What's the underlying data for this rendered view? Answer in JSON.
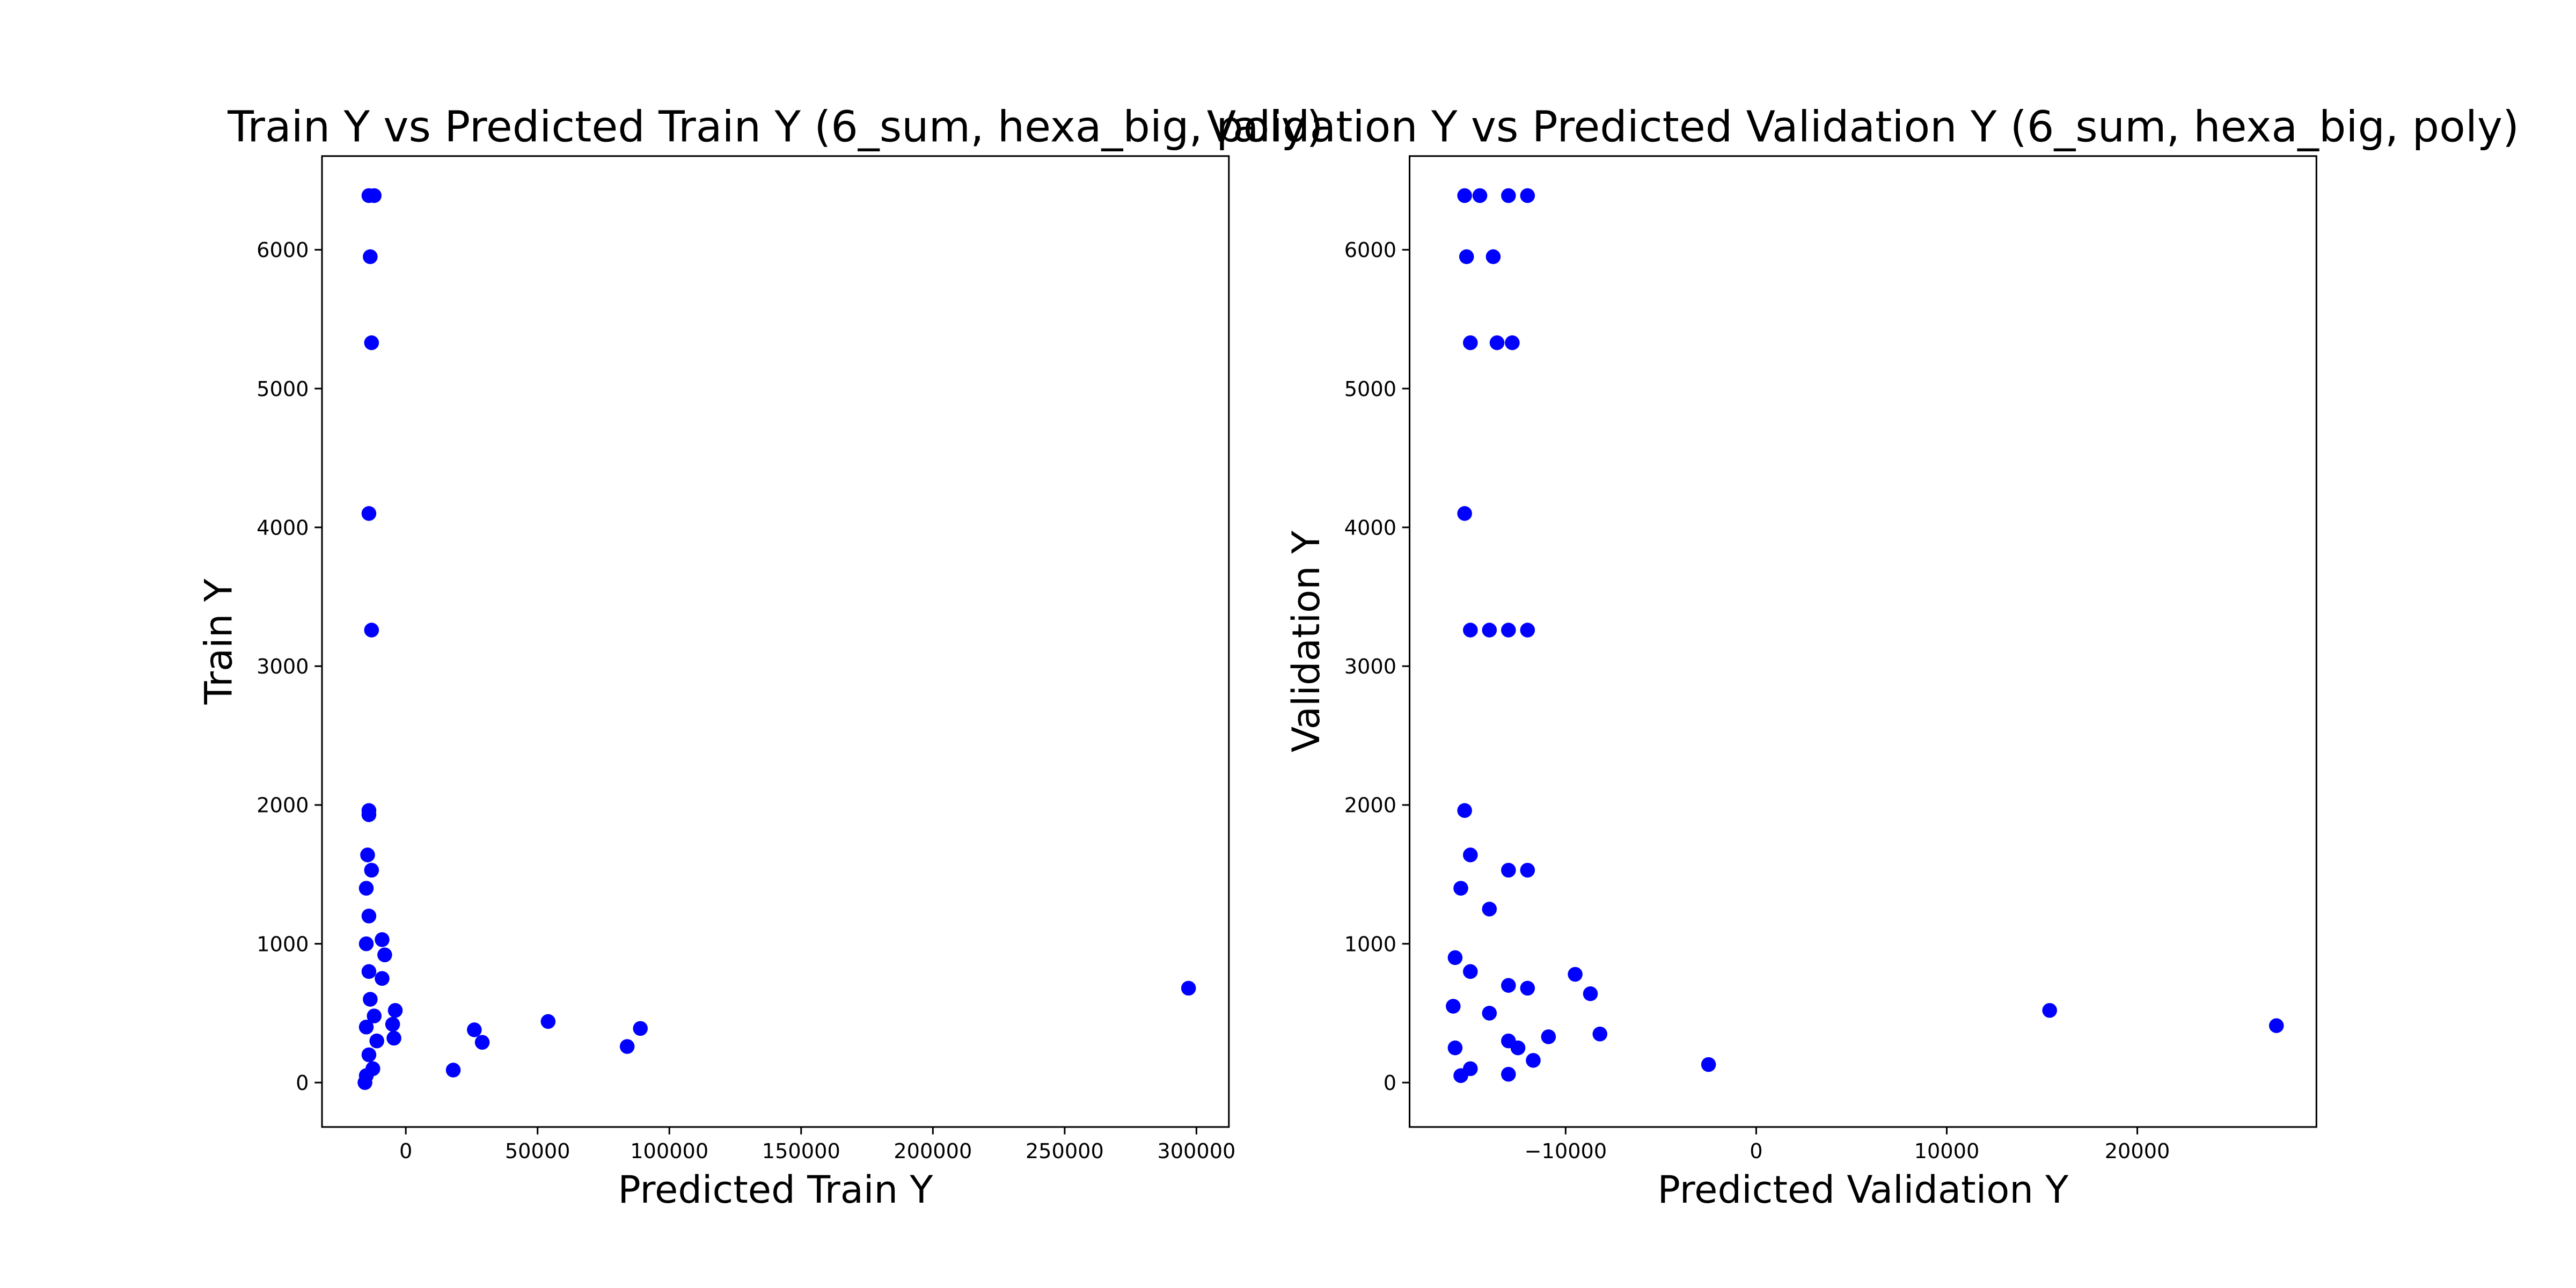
{
  "chart_data": [
    {
      "type": "scatter",
      "title": "Train Y vs Predicted Train Y (6_sum, hexa_big, poly)",
      "x_label": "Predicted Train Y",
      "y_label": "Train Y",
      "color": "#0000ff",
      "x": [
        -14000,
        -12000,
        -13500,
        -13000,
        -14000,
        -13000,
        -14000,
        -14000,
        -14500,
        -13000,
        -15000,
        -14000,
        -15000,
        -14000,
        -13500,
        -15000,
        -14000,
        -15000,
        -15500,
        -9000,
        -8000,
        -9000,
        -4000,
        -5000,
        -4500,
        26000,
        29000,
        54000,
        84000,
        89000,
        18000,
        297000,
        -12000,
        -11000,
        -12500
      ],
      "values": [
        6390,
        6390,
        5950,
        5330,
        4100,
        3260,
        1960,
        1930,
        1640,
        1530,
        1400,
        1200,
        1000,
        800,
        600,
        400,
        200,
        50,
        0,
        1030,
        920,
        750,
        520,
        420,
        320,
        380,
        290,
        440,
        260,
        390,
        90,
        680,
        480,
        300,
        100
      ],
      "xlim": [
        -31800,
        312300
      ],
      "ylim": [
        -320,
        6675
      ],
      "xticks": [
        0,
        50000,
        100000,
        150000,
        200000,
        250000,
        300000
      ],
      "yticks": [
        0,
        1000,
        2000,
        3000,
        4000,
        5000,
        6000
      ]
    },
    {
      "type": "scatter",
      "title": "Validation Y vs Predicted Validation Y (6_sum, hexa_big, poly)",
      "x_label": "Predicted Validation Y",
      "y_label": "Validation Y",
      "color": "#0000ff",
      "x": [
        -15300,
        -14500,
        -13000,
        -12000,
        -15200,
        -13800,
        -15000,
        -13600,
        -12800,
        -15300,
        -15000,
        -14000,
        -13000,
        -12000,
        -15300,
        -15000,
        -13000,
        -12000,
        -15500,
        -14000,
        -15800,
        -15000,
        -13000,
        -12000,
        -15900,
        -14000,
        -13000,
        -15800,
        -15000,
        -13000,
        -12500,
        -11700,
        -10900,
        -9500,
        -8700,
        -8200,
        -2500,
        15400,
        27300,
        -15500
      ],
      "values": [
        6390,
        6390,
        6390,
        6390,
        5950,
        5950,
        5330,
        5330,
        5330,
        4100,
        3260,
        3260,
        3260,
        3260,
        1960,
        1640,
        1530,
        1530,
        1400,
        1250,
        900,
        800,
        700,
        680,
        550,
        500,
        300,
        250,
        100,
        60,
        250,
        160,
        330,
        780,
        640,
        350,
        130,
        520,
        410,
        50
      ],
      "xlim": [
        -18190,
        29400
      ],
      "ylim": [
        -320,
        6675
      ],
      "xticks": [
        {
          "value": -10000,
          "label": "−10000"
        },
        0,
        10000,
        20000
      ],
      "yticks": [
        0,
        1000,
        2000,
        3000,
        4000,
        5000,
        6000
      ]
    }
  ]
}
